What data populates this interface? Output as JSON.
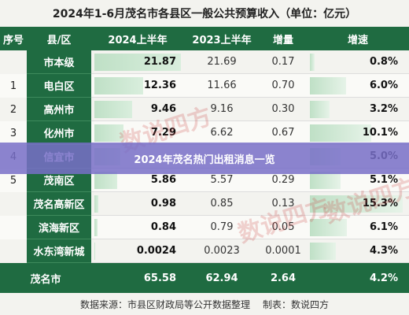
{
  "title": "2024年1-6月茂名市各县区一般公共预算收入（单位：亿元）",
  "header": {
    "col_num": "序号",
    "col_region": "县/区",
    "col_h1_2024": "2024上半年",
    "col_h1_2023": "2023上半年",
    "col_increase": "增量",
    "col_growth": "增速"
  },
  "rows": [
    {
      "num": "",
      "region": "市本级",
      "v2024": "21.87",
      "v2023": "21.69",
      "inc": "0.17",
      "growth": "0.8%"
    },
    {
      "num": "1",
      "region": "电白区",
      "v2024": "12.36",
      "v2023": "11.66",
      "inc": "0.70",
      "growth": "6.0%"
    },
    {
      "num": "2",
      "region": "高州市",
      "v2024": "9.46",
      "v2023": "9.16",
      "inc": "0.30",
      "growth": "3.2%"
    },
    {
      "num": "3",
      "region": "化州市",
      "v2024": "7.29",
      "v2023": "6.62",
      "inc": "0.67",
      "growth": "10.1%"
    },
    {
      "num": "4",
      "region": "信宜市",
      "v2024": "",
      "v2023": "",
      "inc": "",
      "growth": "5.0%"
    },
    {
      "num": "5",
      "region": "茂南区",
      "v2024": "5.86",
      "v2023": "5.57",
      "inc": "0.29",
      "growth": "5.1%"
    },
    {
      "num": "",
      "region": "茂名高新区",
      "v2024": "0.98",
      "v2023": "0.85",
      "inc": "0.13",
      "growth": "15.3%"
    },
    {
      "num": "",
      "region": "滨海新区",
      "v2024": "0.84",
      "v2023": "0.79",
      "inc": "0.05",
      "growth": "6.1%"
    },
    {
      "num": "",
      "region": "水东湾新城",
      "v2024": "0.0024",
      "v2023": "0.0023",
      "inc": "0.0001",
      "growth": "4.3%"
    }
  ],
  "bar_fractions_2024": [
    1.0,
    0.565,
    0.433,
    0.333,
    0.3,
    0.268,
    0.045,
    0.038,
    0.0001
  ],
  "bar_fractions_growth": [
    0.05,
    0.39,
    0.21,
    0.66,
    0.33,
    0.33,
    1.0,
    0.4,
    0.28
  ],
  "total": {
    "region": "茂名市",
    "v2024": "65.58",
    "v2023": "62.94",
    "inc": "2.64",
    "growth": "4.2%"
  },
  "footer": {
    "source": "数据来源：市县区财政局等公开数据整理",
    "author": "制表：数说四方"
  },
  "overlay_banner": "2024年茂名热门出租消息一览",
  "watermark": "数说四方",
  "colors": {
    "header_green": "#1f6b41",
    "bar_green": "#bfe0c6",
    "banner_purple": "#786ec8"
  }
}
